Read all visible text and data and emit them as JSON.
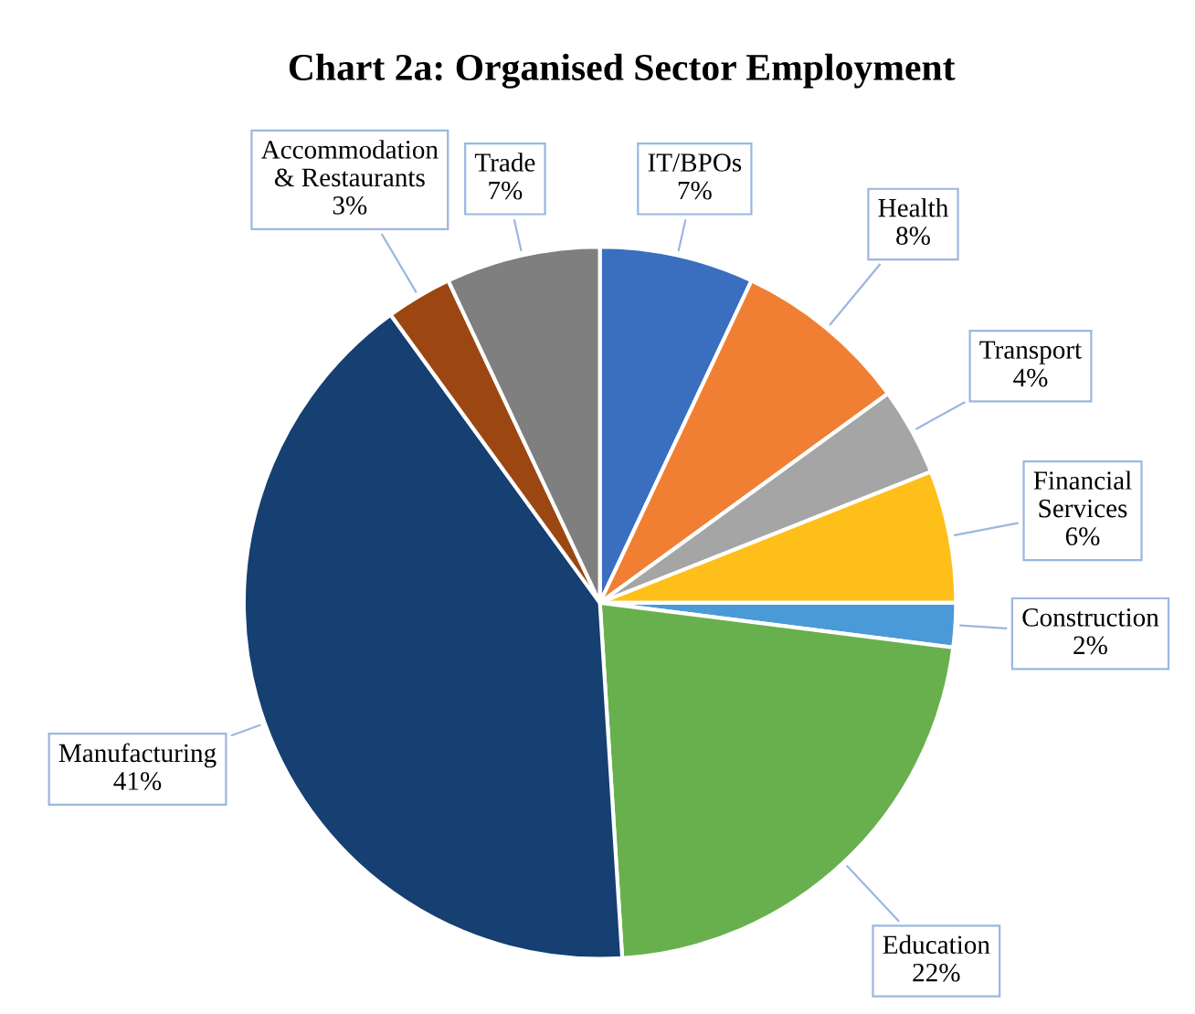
{
  "chart_data": {
    "type": "pie",
    "title": "Chart 2a: Organised Sector Employment",
    "categories": [
      "IT/BPOs",
      "Health",
      "Transport",
      "Financial\nServices",
      "Construction",
      "Education",
      "Manufacturing",
      "Accommodation\n& Restaurants",
      "Trade"
    ],
    "values": [
      7,
      8,
      4,
      6,
      2,
      22,
      41,
      3,
      7
    ],
    "colors": [
      "#3a6fbf",
      "#f07f33",
      "#a5a5a5",
      "#ffbf1a",
      "#4a9ad8",
      "#68b04e",
      "#163f72",
      "#9c4712",
      "#7f7f7f"
    ],
    "value_labels": [
      "7%",
      "8%",
      "4%",
      "6%",
      "2%",
      "22%",
      "41%",
      "3%",
      "7%"
    ],
    "legend": false
  }
}
